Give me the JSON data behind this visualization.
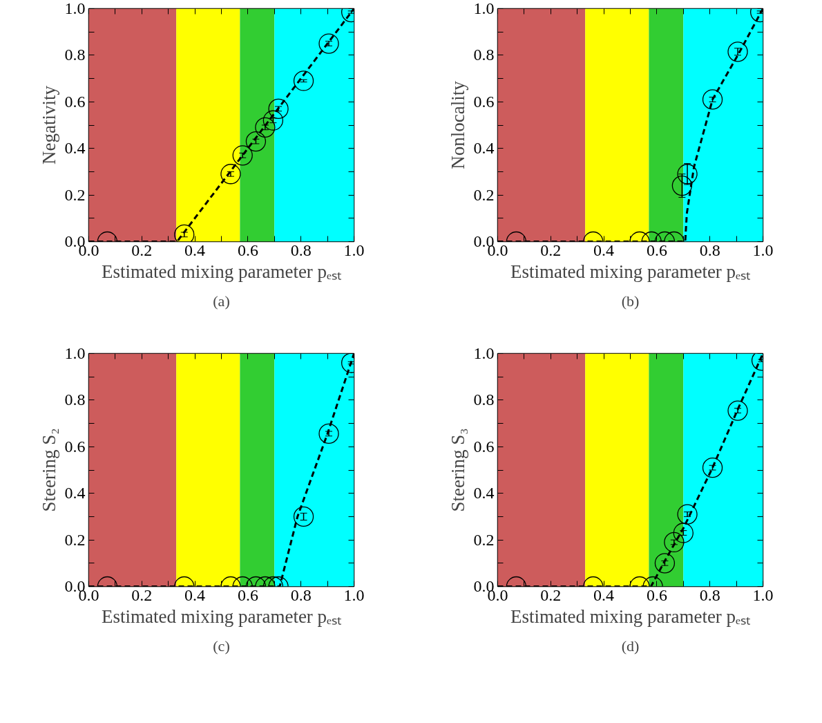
{
  "chart_data": [
    {
      "type": "scatter",
      "ylabel": "Negativity",
      "xlabel": "Estimated mixing parameter pₑₛₜ",
      "annotations": [
        "(a)"
      ],
      "marker": "circle",
      "grid": false,
      "xlim": [
        0,
        1
      ],
      "ylim": [
        0,
        1
      ],
      "xticks": [
        {
          "value": 0,
          "label": "0.0"
        },
        {
          "value": 0.1,
          "label": null
        },
        {
          "value": 0.2,
          "label": "0.2"
        },
        {
          "value": 0.3,
          "label": null
        },
        {
          "value": 0.4,
          "label": "0.4"
        },
        {
          "value": 0.5,
          "label": null
        },
        {
          "value": 0.6,
          "label": "0.6"
        },
        {
          "value": 0.7,
          "label": null
        },
        {
          "value": 0.8,
          "label": "0.8"
        },
        {
          "value": 0.9,
          "label": null
        },
        {
          "value": 1,
          "label": "1.0"
        }
      ],
      "yticks": [
        {
          "value": 0,
          "label": "0.0"
        },
        {
          "value": 0.1,
          "label": null
        },
        {
          "value": 0.2,
          "label": "0.2"
        },
        {
          "value": 0.3,
          "label": null
        },
        {
          "value": 0.4,
          "label": "0.4"
        },
        {
          "value": 0.5,
          "label": null
        },
        {
          "value": 0.6,
          "label": "0.6"
        },
        {
          "value": 0.7,
          "label": null
        },
        {
          "value": 0.8,
          "label": "0.8"
        },
        {
          "value": 0.9,
          "label": null
        },
        {
          "value": 1,
          "label": "1.0"
        }
      ],
      "bands": [
        {
          "axis": "x",
          "from": 0,
          "to": 0.33,
          "color": "#cd5c5c"
        },
        {
          "axis": "x",
          "from": 0.33,
          "to": 0.57,
          "color": "#ffff00"
        },
        {
          "axis": "x",
          "from": 0.57,
          "to": 0.7,
          "color": "#32cd32"
        },
        {
          "axis": "x",
          "from": 0.7,
          "to": 1,
          "color": "#00ffff"
        }
      ],
      "x": [
        0.07,
        0.36,
        0.535,
        0.58,
        0.63,
        0.665,
        0.695,
        0.715,
        0.81,
        0.905,
        0.99
      ],
      "series": [
        {
          "color": "#000000",
          "values": [
            0,
            0.03,
            0.29,
            0.37,
            0.43,
            0.49,
            0.52,
            0.57,
            0.69,
            0.85,
            0.985
          ],
          "errors": [
            null,
            0.01,
            0.01,
            0.01,
            0.01,
            0.01,
            0.01,
            0.01,
            0.005,
            0.01,
            0.005
          ]
        },
        {
          "type": "line",
          "color": "#000000",
          "line_style": "dashed",
          "marker": "none",
          "x": [
            0,
            0.333,
            1
          ],
          "values": [
            0,
            0,
            1
          ]
        }
      ]
    },
    {
      "type": "scatter",
      "ylabel": "Nonlocality",
      "xlabel": "Estimated mixing parameter pₑₛₜ",
      "annotations": [
        "(b)"
      ],
      "marker": "circle",
      "grid": false,
      "xlim": [
        0,
        1
      ],
      "ylim": [
        0,
        1
      ],
      "xticks": [
        {
          "value": 0,
          "label": "0.0"
        },
        {
          "value": 0.1,
          "label": null
        },
        {
          "value": 0.2,
          "label": "0.2"
        },
        {
          "value": 0.3,
          "label": null
        },
        {
          "value": 0.4,
          "label": "0.4"
        },
        {
          "value": 0.5,
          "label": null
        },
        {
          "value": 0.6,
          "label": "0.6"
        },
        {
          "value": 0.7,
          "label": null
        },
        {
          "value": 0.8,
          "label": "0.8"
        },
        {
          "value": 0.9,
          "label": null
        },
        {
          "value": 1,
          "label": "1.0"
        }
      ],
      "yticks": [
        {
          "value": 0,
          "label": "0.0"
        },
        {
          "value": 0.1,
          "label": null
        },
        {
          "value": 0.2,
          "label": "0.2"
        },
        {
          "value": 0.3,
          "label": null
        },
        {
          "value": 0.4,
          "label": "0.4"
        },
        {
          "value": 0.5,
          "label": null
        },
        {
          "value": 0.6,
          "label": "0.6"
        },
        {
          "value": 0.7,
          "label": null
        },
        {
          "value": 0.8,
          "label": "0.8"
        },
        {
          "value": 0.9,
          "label": null
        },
        {
          "value": 1,
          "label": "1.0"
        }
      ],
      "bands": [
        {
          "axis": "x",
          "from": 0,
          "to": 0.33,
          "color": "#cd5c5c"
        },
        {
          "axis": "x",
          "from": 0.33,
          "to": 0.57,
          "color": "#ffff00"
        },
        {
          "axis": "x",
          "from": 0.57,
          "to": 0.7,
          "color": "#32cd32"
        },
        {
          "axis": "x",
          "from": 0.7,
          "to": 1,
          "color": "#00ffff"
        }
      ],
      "x": [
        0.07,
        0.36,
        0.535,
        0.58,
        0.63,
        0.665,
        0.695,
        0.715,
        0.81,
        0.905,
        0.99
      ],
      "series": [
        {
          "color": "#000000",
          "values": [
            0,
            0,
            0,
            0,
            0,
            0,
            0.24,
            0.29,
            0.61,
            0.815,
            0.985
          ],
          "errors": [
            null,
            null,
            null,
            null,
            null,
            null,
            0.05,
            0.045,
            0.01,
            0.015,
            0.005
          ]
        },
        {
          "type": "line",
          "color": "#000000",
          "line_style": "dashed",
          "marker": "none",
          "x": [
            0,
            0.707,
            0.713,
            0.74,
            0.81,
            0.91,
            1
          ],
          "values": [
            0,
            0,
            0.12,
            0.32,
            0.61,
            0.81,
            1
          ]
        }
      ]
    },
    {
      "type": "scatter",
      "ylabel": "Steering S₂",
      "xlabel": "Estimated mixing parameter pₑₛₜ",
      "annotations": [
        "(c)"
      ],
      "marker": "circle",
      "grid": false,
      "xlim": [
        0,
        1
      ],
      "ylim": [
        0,
        1
      ],
      "xticks": [
        {
          "value": 0,
          "label": "0.0"
        },
        {
          "value": 0.1,
          "label": null
        },
        {
          "value": 0.2,
          "label": "0.2"
        },
        {
          "value": 0.3,
          "label": null
        },
        {
          "value": 0.4,
          "label": "0.4"
        },
        {
          "value": 0.5,
          "label": null
        },
        {
          "value": 0.6,
          "label": "0.6"
        },
        {
          "value": 0.7,
          "label": null
        },
        {
          "value": 0.8,
          "label": "0.8"
        },
        {
          "value": 0.9,
          "label": null
        },
        {
          "value": 1,
          "label": "1.0"
        }
      ],
      "yticks": [
        {
          "value": 0,
          "label": "0.0"
        },
        {
          "value": 0.1,
          "label": null
        },
        {
          "value": 0.2,
          "label": "0.2"
        },
        {
          "value": 0.3,
          "label": null
        },
        {
          "value": 0.4,
          "label": "0.4"
        },
        {
          "value": 0.5,
          "label": null
        },
        {
          "value": 0.6,
          "label": "0.6"
        },
        {
          "value": 0.7,
          "label": null
        },
        {
          "value": 0.8,
          "label": "0.8"
        },
        {
          "value": 0.9,
          "label": null
        },
        {
          "value": 1,
          "label": "1.0"
        }
      ],
      "bands": [
        {
          "axis": "x",
          "from": 0,
          "to": 0.33,
          "color": "#cd5c5c"
        },
        {
          "axis": "x",
          "from": 0.33,
          "to": 0.57,
          "color": "#ffff00"
        },
        {
          "axis": "x",
          "from": 0.57,
          "to": 0.7,
          "color": "#32cd32"
        },
        {
          "axis": "x",
          "from": 0.7,
          "to": 1,
          "color": "#00ffff"
        }
      ],
      "x": [
        0.07,
        0.36,
        0.535,
        0.58,
        0.63,
        0.665,
        0.695,
        0.715,
        0.81,
        0.905,
        0.99
      ],
      "series": [
        {
          "color": "#000000",
          "values": [
            0,
            0,
            0,
            0,
            0,
            0,
            0,
            0,
            0.3,
            0.656,
            0.96
          ],
          "errors": [
            null,
            null,
            null,
            null,
            null,
            null,
            null,
            null,
            0.015,
            0.01,
            0.005
          ]
        },
        {
          "type": "line",
          "color": "#000000",
          "line_style": "dashed",
          "marker": "none",
          "x": [
            0,
            0.72,
            0.787,
            0.9,
            1
          ],
          "values": [
            0,
            0,
            0.3,
            0.656,
            1
          ]
        }
      ]
    },
    {
      "type": "scatter",
      "ylabel": "Steering S₃",
      "xlabel": "Estimated mixing parameter pₑₛₜ",
      "annotations": [
        "(d)"
      ],
      "marker": "circle",
      "grid": false,
      "xlim": [
        0,
        1
      ],
      "ylim": [
        0,
        1
      ],
      "xticks": [
        {
          "value": 0,
          "label": "0.0"
        },
        {
          "value": 0.1,
          "label": null
        },
        {
          "value": 0.2,
          "label": "0.2"
        },
        {
          "value": 0.3,
          "label": null
        },
        {
          "value": 0.4,
          "label": "0.4"
        },
        {
          "value": 0.5,
          "label": null
        },
        {
          "value": 0.6,
          "label": "0.6"
        },
        {
          "value": 0.7,
          "label": null
        },
        {
          "value": 0.8,
          "label": "0.8"
        },
        {
          "value": 0.9,
          "label": null
        },
        {
          "value": 1,
          "label": "1.0"
        }
      ],
      "yticks": [
        {
          "value": 0,
          "label": "0.0"
        },
        {
          "value": 0.1,
          "label": null
        },
        {
          "value": 0.2,
          "label": "0.2"
        },
        {
          "value": 0.3,
          "label": null
        },
        {
          "value": 0.4,
          "label": "0.4"
        },
        {
          "value": 0.5,
          "label": null
        },
        {
          "value": 0.6,
          "label": "0.6"
        },
        {
          "value": 0.7,
          "label": null
        },
        {
          "value": 0.8,
          "label": "0.8"
        },
        {
          "value": 0.9,
          "label": null
        },
        {
          "value": 1,
          "label": "1.0"
        }
      ],
      "bands": [
        {
          "axis": "x",
          "from": 0,
          "to": 0.33,
          "color": "#cd5c5c"
        },
        {
          "axis": "x",
          "from": 0.33,
          "to": 0.57,
          "color": "#ffff00"
        },
        {
          "axis": "x",
          "from": 0.57,
          "to": 0.7,
          "color": "#32cd32"
        },
        {
          "axis": "x",
          "from": 0.7,
          "to": 1,
          "color": "#00ffff"
        }
      ],
      "x": [
        0.07,
        0.36,
        0.535,
        0.585,
        0.63,
        0.665,
        0.7,
        0.715,
        0.81,
        0.905,
        0.995
      ],
      "series": [
        {
          "color": "#000000",
          "values": [
            0,
            0,
            0,
            0,
            0.1,
            0.19,
            0.23,
            0.31,
            0.51,
            0.755,
            0.97
          ],
          "errors": [
            null,
            null,
            null,
            null,
            0.01,
            0.01,
            0.01,
            0.01,
            0.01,
            0.01,
            0.005
          ]
        },
        {
          "type": "line",
          "color": "#000000",
          "line_style": "dashed",
          "marker": "none",
          "x": [
            0,
            0.578,
            0.63,
            0.7,
            0.81,
            0.905,
            1
          ],
          "values": [
            0,
            0,
            0.11,
            0.25,
            0.51,
            0.76,
            1
          ]
        }
      ]
    }
  ]
}
